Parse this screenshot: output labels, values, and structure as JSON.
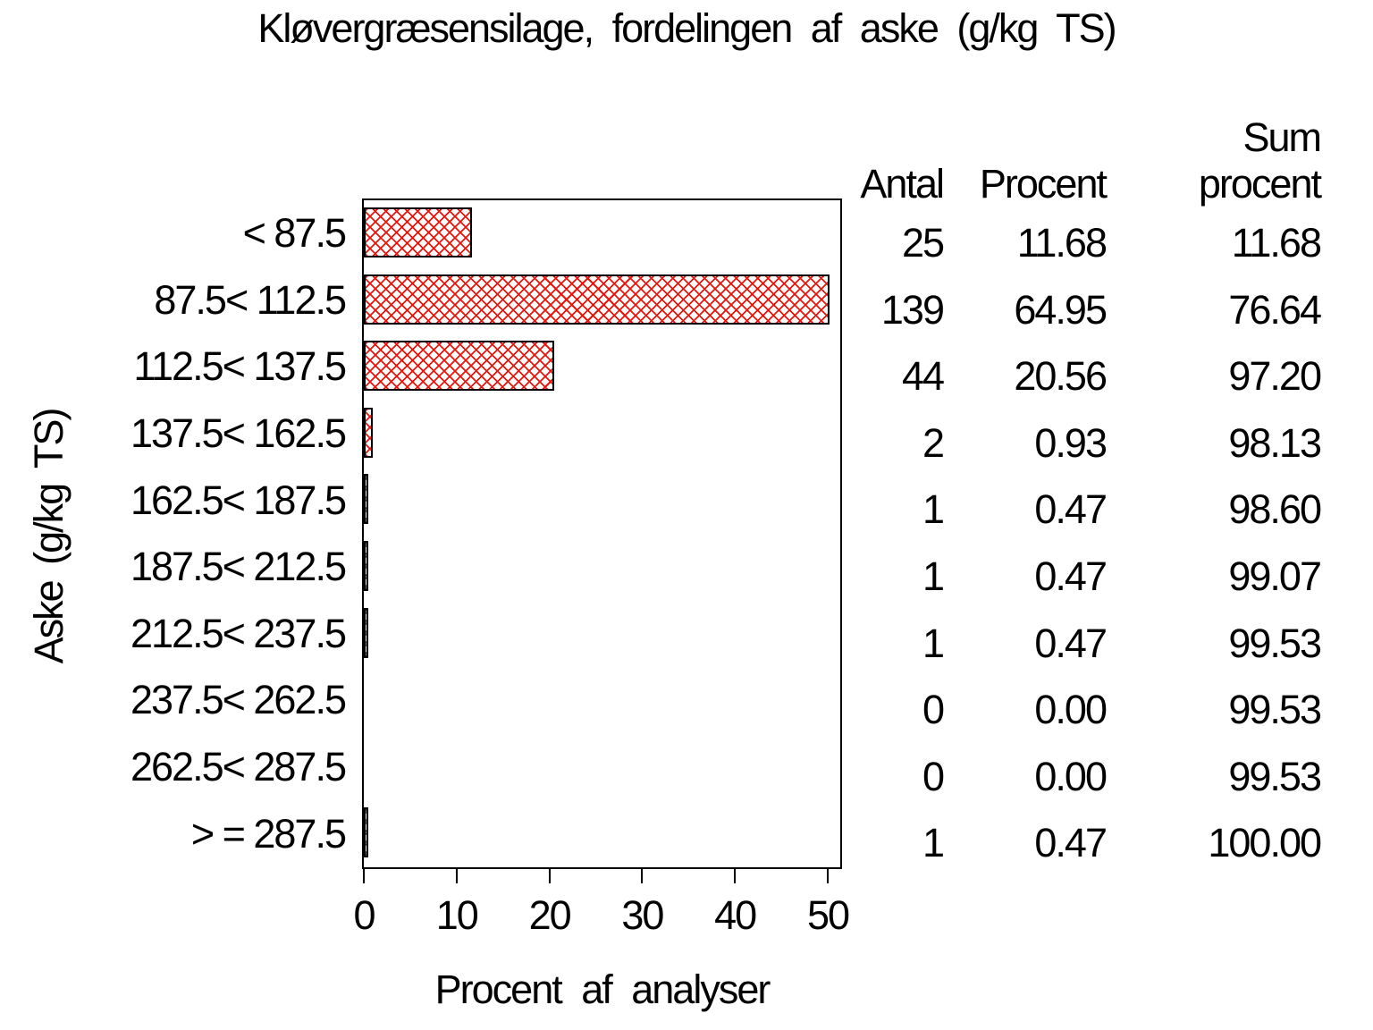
{
  "chart_data": {
    "type": "bar",
    "orientation": "horizontal",
    "title": "Kløvergræsensilage, fordelingen af aske (g/kg TS)",
    "xlabel": "Procent af analyser",
    "ylabel": "Aske (g/kg TS)",
    "xlim": [
      0,
      51.5
    ],
    "bar_clip_max": 50.2,
    "xticks": [
      0,
      10,
      20,
      30,
      40,
      50
    ],
    "grid": false,
    "legend": "none",
    "bar_style": {
      "fill_pattern": "diagonal-crosshatch",
      "pattern_color": "#e8170e",
      "outline_color": "#000000",
      "background": "#ffffff"
    },
    "categories": [
      "< 87.5",
      "87.5< 112.5",
      "112.5< 137.5",
      "137.5< 162.5",
      "162.5< 187.5",
      "187.5< 212.5",
      "212.5< 237.5",
      "237.5< 262.5",
      "262.5< 287.5",
      "> = 287.5"
    ],
    "values": [
      11.68,
      64.95,
      20.56,
      0.93,
      0.47,
      0.47,
      0.47,
      0.0,
      0.0,
      0.47
    ],
    "table": {
      "headers": {
        "antal": "Antal",
        "procent": "Procent",
        "sum_line1": "Sum",
        "sum_line2": "procent"
      },
      "rows": [
        {
          "antal": "25",
          "procent": "11.68",
          "sum": "11.68"
        },
        {
          "antal": "139",
          "procent": "64.95",
          "sum": "76.64"
        },
        {
          "antal": "44",
          "procent": "20.56",
          "sum": "97.20"
        },
        {
          "antal": "2",
          "procent": "0.93",
          "sum": "98.13"
        },
        {
          "antal": "1",
          "procent": "0.47",
          "sum": "98.60"
        },
        {
          "antal": "1",
          "procent": "0.47",
          "sum": "99.07"
        },
        {
          "antal": "1",
          "procent": "0.47",
          "sum": "99.53"
        },
        {
          "antal": "0",
          "procent": "0.00",
          "sum": "99.53"
        },
        {
          "antal": "0",
          "procent": "0.00",
          "sum": "99.53"
        },
        {
          "antal": "1",
          "procent": "0.47",
          "sum": "100.00"
        }
      ]
    }
  }
}
